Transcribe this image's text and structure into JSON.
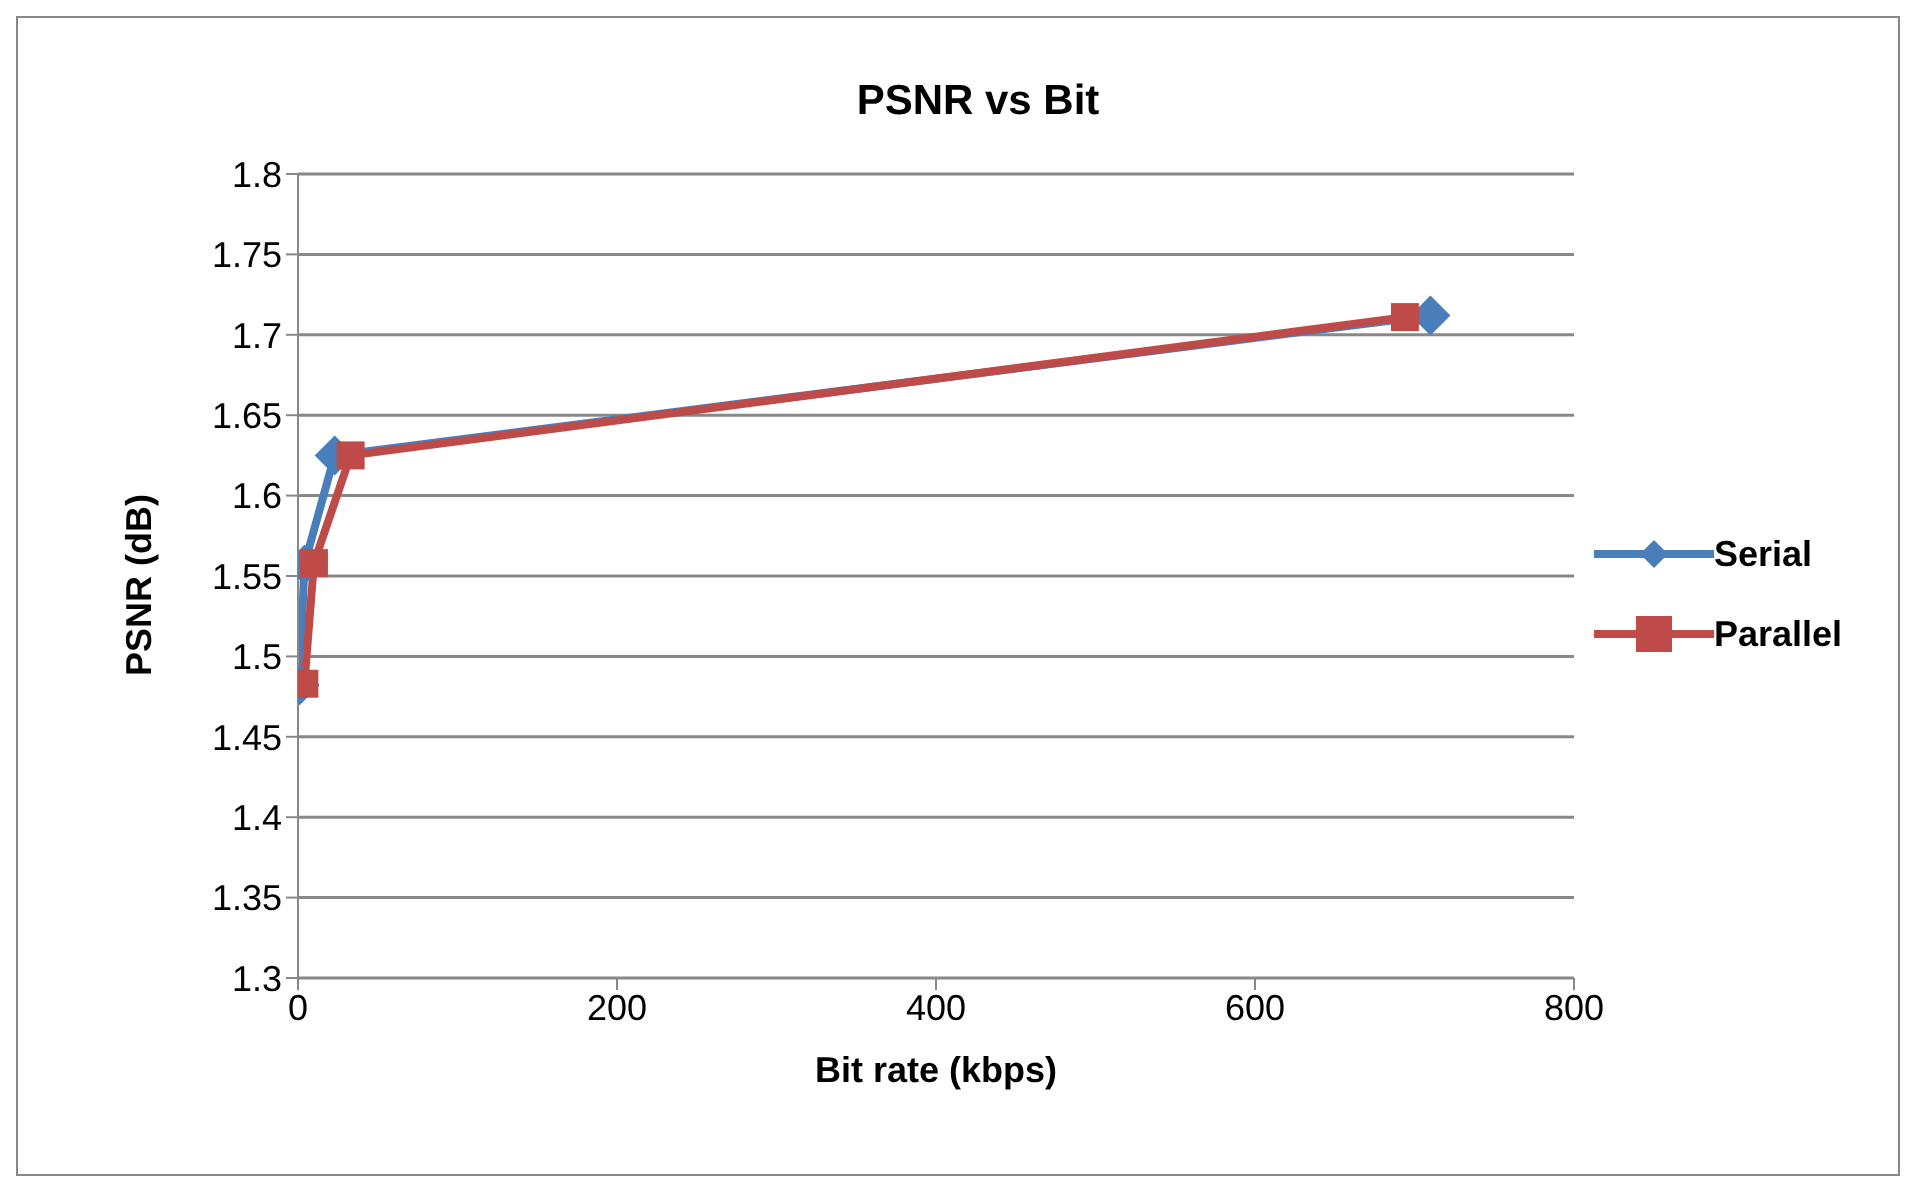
{
  "chart_data": {
    "type": "line",
    "title": "PSNR vs Bit",
    "xlabel": "Bit rate (kbps)",
    "ylabel": "PSNR (dB)",
    "series": [
      {
        "name": "Serial",
        "color": "#4a7ebb",
        "marker": "diamond",
        "x": [
          1,
          4,
          23,
          710
        ],
        "values": [
          1.482,
          1.557,
          1.625,
          1.712
        ]
      },
      {
        "name": "Parallel",
        "color": "#be4b48",
        "marker": "square",
        "x": [
          4,
          10,
          33,
          694
        ],
        "values": [
          1.483,
          1.558,
          1.625,
          1.711
        ]
      }
    ],
    "xlim": [
      0,
      800
    ],
    "xticks": [
      0,
      200,
      400,
      600,
      800
    ],
    "ylim": [
      1.3,
      1.8
    ],
    "yticks": [
      1.3,
      1.35,
      1.4,
      1.45,
      1.5,
      1.55,
      1.6,
      1.65,
      1.7,
      1.75,
      1.8
    ],
    "grid": "y",
    "legend": "right"
  }
}
